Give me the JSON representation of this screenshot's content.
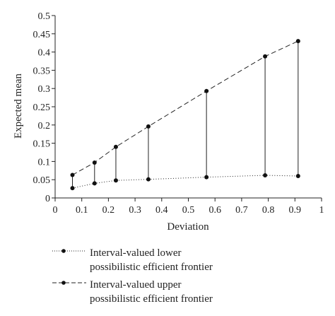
{
  "chart_data": {
    "type": "line",
    "xlabel": "Deviation",
    "ylabel": "Expected mean",
    "xlim": [
      0,
      1
    ],
    "ylim": [
      0,
      0.5
    ],
    "x_ticks": [
      "0",
      "0.1",
      "0.2",
      "0.3",
      "0.4",
      "0.5",
      "0.6",
      "0.7",
      "0.8",
      "0.9",
      "1"
    ],
    "y_ticks": [
      "0",
      "0.05",
      "0.1",
      "0.15",
      "0.2",
      "0.25",
      "0.3",
      "0.35",
      "0.4",
      "0.45",
      "0.5"
    ],
    "grid": false,
    "legend_position": "bottom",
    "interval_bars": true,
    "series": [
      {
        "name": "Interval-valued lower\npossibilistic efficient frontier",
        "line_style": "dotted",
        "color": "#222222",
        "x": [
          0.065,
          0.148,
          0.228,
          0.35,
          0.568,
          0.788,
          0.912
        ],
        "y": [
          0.027,
          0.04,
          0.048,
          0.051,
          0.057,
          0.062,
          0.06
        ]
      },
      {
        "name": "Interval-valued upper\npossibilistic efficient frontier",
        "line_style": "dashed",
        "color": "#222222",
        "x": [
          0.065,
          0.148,
          0.228,
          0.35,
          0.568,
          0.788,
          0.912
        ],
        "y": [
          0.063,
          0.097,
          0.14,
          0.196,
          0.293,
          0.388,
          0.43
        ]
      }
    ]
  }
}
